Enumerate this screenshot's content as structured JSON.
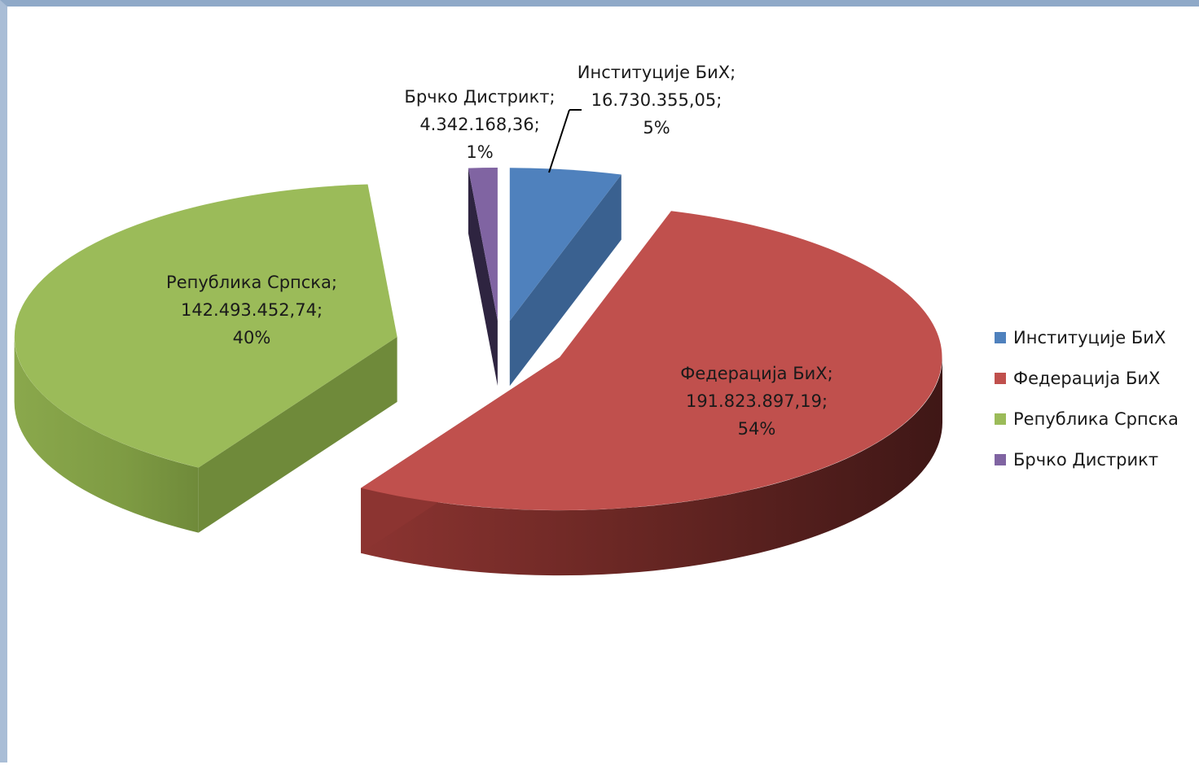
{
  "chart_data": {
    "type": "pie",
    "style": "3d-exploded",
    "legend_position": "right",
    "series": [
      {
        "name": "Институције БиХ",
        "value": 16730355.05,
        "value_label": "16.730.355,05",
        "percent_label": "5%",
        "color": "#4f81bd"
      },
      {
        "name": "Федерација БиХ",
        "value": 191823897.19,
        "value_label": "191.823.897,19",
        "percent_label": "54%",
        "color": "#c0504d"
      },
      {
        "name": "Република Српска",
        "value": 142493452.74,
        "value_label": "142.493.452,74",
        "percent_label": "40%",
        "color": "#9bbb59"
      },
      {
        "name": "Брчко Дистрикт",
        "value": 4342168.36,
        "value_label": "4.342.168,36",
        "percent_label": "1%",
        "color": "#8064a2"
      }
    ]
  }
}
